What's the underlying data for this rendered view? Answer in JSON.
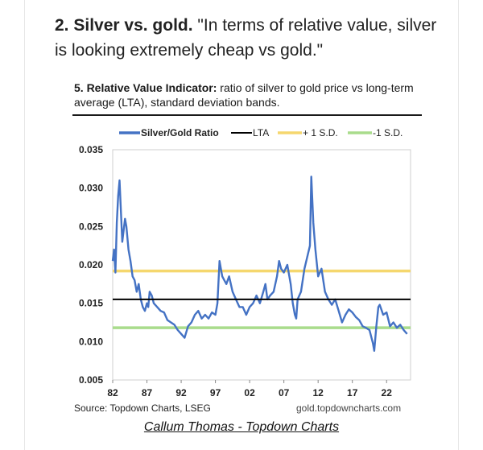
{
  "headline": {
    "bold": "2. Silver vs. gold.",
    "quote": " \"In terms of relative value, silver is looking extremely cheap vs gold.\""
  },
  "chart_title": {
    "bold": "5. Relative Value Indicator:",
    "rest": " ratio of silver to gold price vs long-term average (LTA), standard deviation bands."
  },
  "source": "Source: Topdown Charts, LSEG",
  "site": "gold.topdowncharts.com",
  "credit": "Callum Thomas - Topdown Charts",
  "chart_data": {
    "type": "line",
    "title": "",
    "xlabel": "",
    "ylabel": "",
    "xlim": [
      1982,
      2025.5
    ],
    "ylim": [
      0.005,
      0.035
    ],
    "x_ticks": [
      1982,
      1987,
      1992,
      1997,
      2002,
      2007,
      2012,
      2017,
      2022
    ],
    "x_tick_labels": [
      "82",
      "87",
      "92",
      "97",
      "02",
      "07",
      "12",
      "17",
      "22"
    ],
    "y_ticks": [
      0.005,
      0.01,
      0.015,
      0.02,
      0.025,
      0.03,
      0.035
    ],
    "y_tick_labels": [
      "0.005",
      "0.010",
      "0.015",
      "0.020",
      "0.025",
      "0.030",
      "0.035"
    ],
    "grid": false,
    "legend_position": "top",
    "colors": {
      "ratio": "#4472c4",
      "lta": "#000000",
      "plus_sd": "#f5d76e",
      "minus_sd": "#a9dc8c"
    },
    "series": [
      {
        "name": "Silver/Gold Ratio",
        "x": [
          1982.0,
          1982.2,
          1982.4,
          1982.6,
          1982.8,
          1983.0,
          1983.2,
          1983.4,
          1983.6,
          1983.8,
          1984.0,
          1984.3,
          1984.6,
          1984.9,
          1985.2,
          1985.5,
          1985.8,
          1986.1,
          1986.4,
          1986.7,
          1987.0,
          1987.2,
          1987.4,
          1987.7,
          1988.0,
          1988.5,
          1989.0,
          1989.5,
          1990.0,
          1990.5,
          1991.0,
          1991.5,
          1992.0,
          1992.5,
          1993.0,
          1993.5,
          1994.0,
          1994.5,
          1995.0,
          1995.5,
          1996.0,
          1996.5,
          1997.0,
          1997.3,
          1997.6,
          1997.8,
          1998.0,
          1998.3,
          1998.6,
          1999.0,
          1999.5,
          2000.0,
          2000.5,
          2001.0,
          2001.5,
          2002.0,
          2002.5,
          2003.0,
          2003.5,
          2004.0,
          2004.3,
          2004.6,
          2005.0,
          2005.5,
          2006.0,
          2006.3,
          2006.6,
          2007.0,
          2007.5,
          2008.0,
          2008.3,
          2008.6,
          2008.8,
          2009.0,
          2009.5,
          2010.0,
          2010.4,
          2010.8,
          2011.0,
          2011.3,
          2011.6,
          2012.0,
          2012.5,
          2013.0,
          2013.5,
          2014.0,
          2014.5,
          2015.0,
          2015.5,
          2016.0,
          2016.5,
          2017.0,
          2017.5,
          2018.0,
          2018.5,
          2019.0,
          2019.5,
          2020.0,
          2020.2,
          2020.5,
          2020.8,
          2021.0,
          2021.5,
          2022.0,
          2022.5,
          2023.0,
          2023.5,
          2024.0,
          2024.5,
          2025.0
        ],
        "y": [
          0.0205,
          0.022,
          0.019,
          0.0255,
          0.029,
          0.031,
          0.027,
          0.023,
          0.0245,
          0.026,
          0.025,
          0.022,
          0.0205,
          0.0185,
          0.018,
          0.0165,
          0.0175,
          0.0155,
          0.0145,
          0.014,
          0.015,
          0.0145,
          0.0165,
          0.016,
          0.015,
          0.0145,
          0.014,
          0.0138,
          0.0128,
          0.0125,
          0.0122,
          0.0115,
          0.011,
          0.0105,
          0.012,
          0.0125,
          0.0135,
          0.014,
          0.013,
          0.0135,
          0.013,
          0.0138,
          0.0135,
          0.015,
          0.0205,
          0.0195,
          0.0185,
          0.018,
          0.0175,
          0.0185,
          0.0165,
          0.0155,
          0.0145,
          0.0145,
          0.0135,
          0.0145,
          0.015,
          0.016,
          0.015,
          0.0165,
          0.0175,
          0.0155,
          0.016,
          0.0165,
          0.0185,
          0.0205,
          0.0195,
          0.019,
          0.02,
          0.0175,
          0.015,
          0.0135,
          0.013,
          0.0155,
          0.0165,
          0.0195,
          0.021,
          0.0225,
          0.0315,
          0.0255,
          0.022,
          0.0185,
          0.0195,
          0.0165,
          0.0155,
          0.0148,
          0.0155,
          0.014,
          0.0125,
          0.0135,
          0.0142,
          0.0138,
          0.0132,
          0.0128,
          0.012,
          0.0118,
          0.0115,
          0.0098,
          0.0088,
          0.012,
          0.0145,
          0.0148,
          0.0135,
          0.0138,
          0.012,
          0.0125,
          0.0118,
          0.0122,
          0.0115,
          0.011
        ]
      },
      {
        "name": "LTA",
        "value": 0.0155
      },
      {
        "name": "+ 1 S.D.",
        "value": 0.0192
      },
      {
        "name": "-1 S.D.",
        "value": 0.0118
      }
    ]
  }
}
